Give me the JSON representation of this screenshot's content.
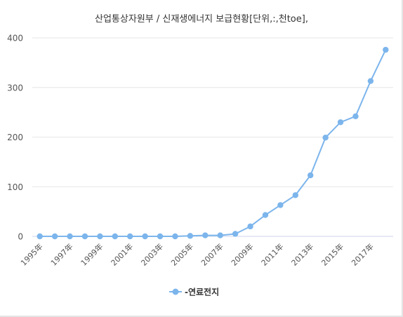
{
  "chart_data": {
    "type": "line",
    "title": "산업통상자원부 / 신재생에너지 보급현황[단위,:,천toe],",
    "xlabel": "",
    "ylabel": "",
    "x": [
      "1995年",
      "1996年",
      "1997年",
      "1998年",
      "1999年",
      "2000年",
      "2001年",
      "2002年",
      "2003年",
      "2004年",
      "2005年",
      "2006年",
      "2007年",
      "2008年",
      "2009年",
      "2010年",
      "2011年",
      "2012年",
      "2013年",
      "2014年",
      "2015年",
      "2016年",
      "2017年",
      "2018年"
    ],
    "x_tick_labels": [
      "1995年",
      "1997年",
      "1999年",
      "2001年",
      "2003年",
      "2005年",
      "2007年",
      "2009年",
      "2011年",
      "2013年",
      "2015年",
      "2017年"
    ],
    "y_ticks": [
      0,
      100,
      200,
      300,
      400
    ],
    "ylim": [
      0,
      400
    ],
    "series": [
      {
        "name": "-연료전지",
        "color": "#7cb5ec",
        "values": [
          0,
          0,
          0,
          0,
          0,
          0,
          0,
          0,
          0,
          0,
          1,
          2,
          2,
          5,
          20,
          43,
          63,
          83,
          123,
          199,
          230,
          242,
          313,
          376
        ]
      }
    ],
    "grid": true,
    "legend": "bottom-center"
  }
}
